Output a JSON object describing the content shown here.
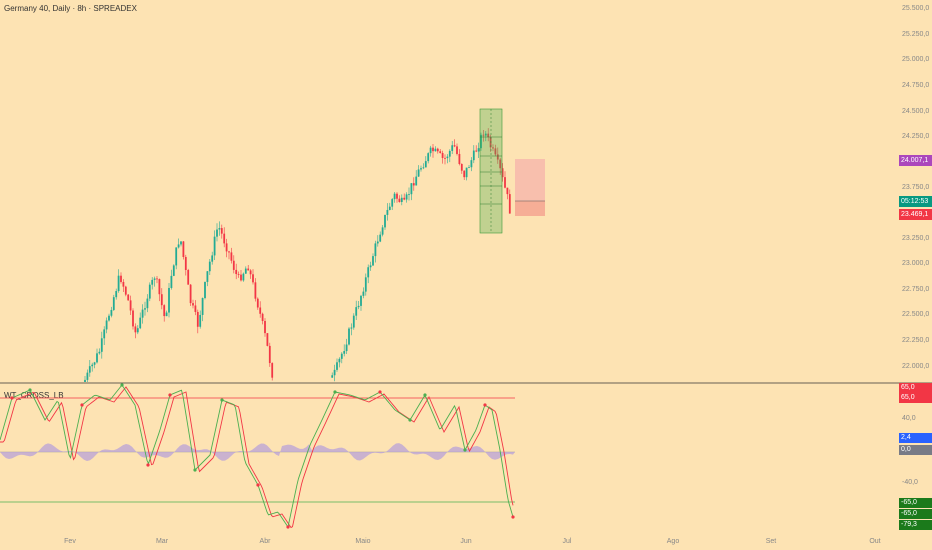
{
  "header": {
    "title": "Germany 40, Daily · 8h · SPREADEX"
  },
  "indicator": {
    "title": "WT_CROSS_LB"
  },
  "price_axis": {
    "ticks": [
      "25.500,0",
      "25.250,0",
      "25.000,0",
      "24.750,0",
      "24.500,0",
      "24.250,0",
      "23.750,0",
      "23.250,0",
      "23.000,0",
      "22.750,0",
      "22.500,0",
      "22.250,0",
      "22.000,0"
    ]
  },
  "time_axis": {
    "ticks": [
      "Fev",
      "Mar",
      "Abr",
      "Maio",
      "Jun",
      "Jul",
      "Ago",
      "Set",
      "Out"
    ]
  },
  "tags": {
    "price_purple": "24.007,1",
    "countdown": "05:12:53",
    "last_price": "23.469,1"
  },
  "indicator_axis": {
    "ticks": [
      "40,0",
      "-40,0"
    ],
    "tags": [
      "65,0",
      "65,0",
      "2,4",
      "0,0",
      "-65,0",
      "-65,0",
      "-79,3"
    ]
  },
  "colors": {
    "background": "#fde3b3",
    "up": "#22ab94",
    "down": "#f23645",
    "tag_purple": "#ab47bc",
    "tag_teal": "#089981",
    "tag_red": "#f23645",
    "tag_blue": "#2962ff",
    "tag_gray": "#787b86",
    "tag_green": "#1b7a1b",
    "wt_line": "#4caf50",
    "wt_signal": "#f23645",
    "histogram": "#b39ddb",
    "overbought_line": "#f23645",
    "oversold_line": "#4caf50"
  }
}
